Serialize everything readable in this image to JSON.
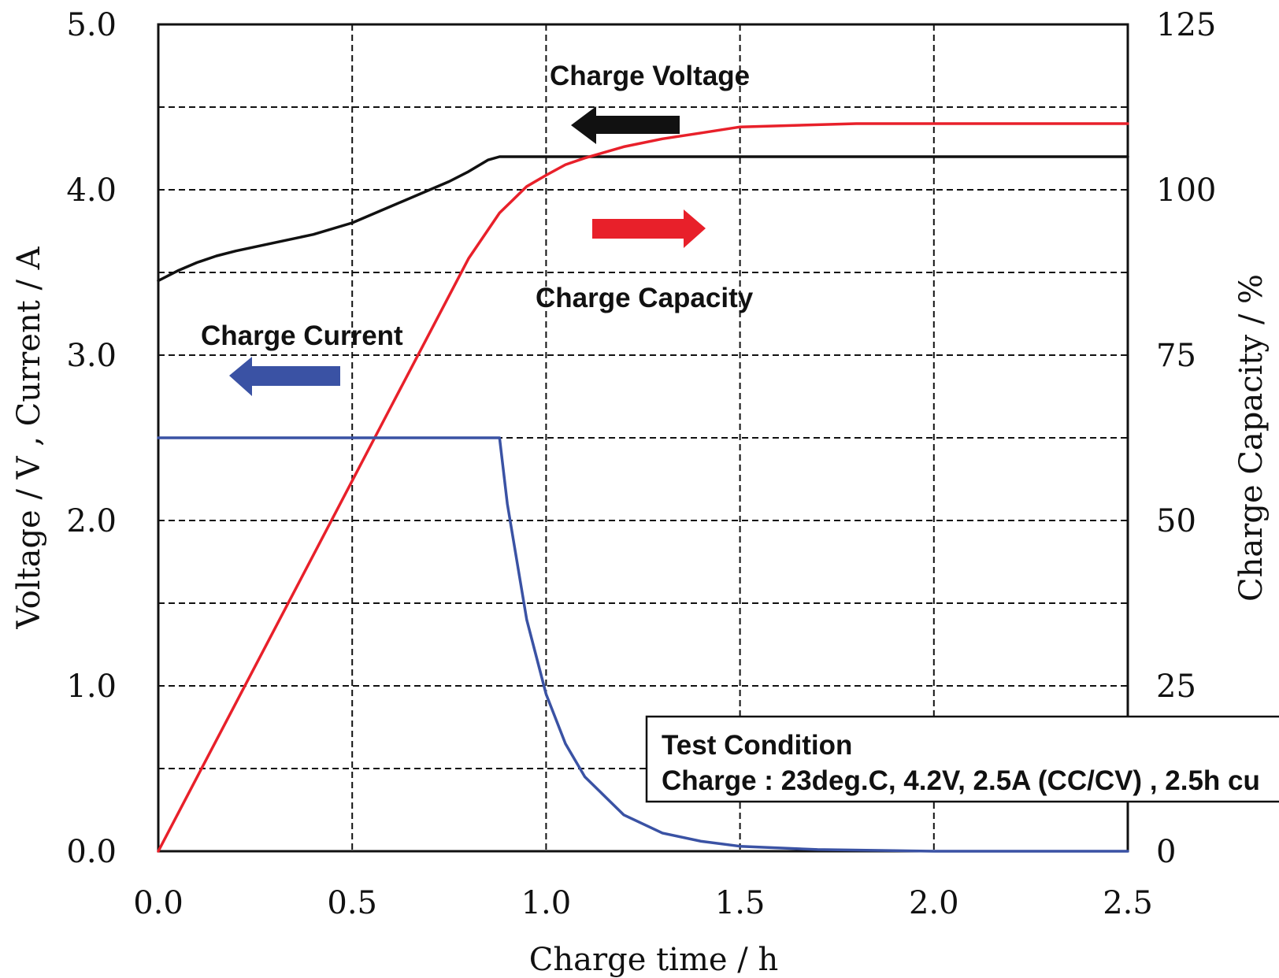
{
  "chart_data": {
    "type": "line",
    "xlabel": "Charge time / h",
    "ylabel_left": "Voltage / V , Current / A",
    "ylabel_right": "Charge Capacity / %",
    "xlim": [
      0.0,
      2.5
    ],
    "ylim_left": [
      0.0,
      5.0
    ],
    "ylim_right": [
      0,
      125
    ],
    "x_ticks": [
      "0.0",
      "0.5",
      "1.0",
      "1.5",
      "2.0",
      "2.5"
    ],
    "y_left_ticks": [
      "0.0",
      "1.0",
      "2.0",
      "3.0",
      "4.0",
      "5.0"
    ],
    "y_right_ticks": [
      "0",
      "25",
      "50",
      "75",
      "100",
      "125"
    ],
    "grid": true,
    "series": [
      {
        "name": "Charge Voltage",
        "axis": "left",
        "color": "#111111",
        "x": [
          0.0,
          0.05,
          0.1,
          0.15,
          0.2,
          0.3,
          0.4,
          0.5,
          0.55,
          0.6,
          0.65,
          0.7,
          0.75,
          0.8,
          0.85,
          0.88,
          1.0,
          1.5,
          2.0,
          2.5
        ],
        "y": [
          3.45,
          3.51,
          3.56,
          3.6,
          3.63,
          3.68,
          3.73,
          3.8,
          3.85,
          3.9,
          3.95,
          4.0,
          4.05,
          4.11,
          4.18,
          4.2,
          4.2,
          4.2,
          4.2,
          4.2
        ]
      },
      {
        "name": "Charge Capacity",
        "axis": "right",
        "color": "#e8202a",
        "x": [
          0.0,
          0.1,
          0.2,
          0.3,
          0.4,
          0.5,
          0.6,
          0.7,
          0.8,
          0.88,
          0.95,
          1.0,
          1.05,
          1.1,
          1.2,
          1.3,
          1.4,
          1.5,
          1.8,
          2.0,
          2.5
        ],
        "y": [
          0,
          11.2,
          22.4,
          33.6,
          44.8,
          56.0,
          67.2,
          78.4,
          89.6,
          96.5,
          100.5,
          102.2,
          103.8,
          104.8,
          106.5,
          107.7,
          108.6,
          109.5,
          110.0,
          110.0,
          110.0
        ]
      },
      {
        "name": "Charge Current",
        "axis": "left",
        "color": "#3a52a4",
        "x": [
          0.0,
          0.88,
          0.9,
          0.95,
          1.0,
          1.05,
          1.1,
          1.2,
          1.3,
          1.4,
          1.5,
          1.7,
          2.0,
          2.5
        ],
        "y": [
          2.5,
          2.5,
          2.1,
          1.4,
          0.95,
          0.65,
          0.45,
          0.22,
          0.11,
          0.06,
          0.03,
          0.01,
          0.0,
          0.0
        ]
      }
    ],
    "annotations": {
      "voltage": "Charge Voltage",
      "capacity": "Charge Capacity",
      "current": "Charge Current",
      "test_title": "Test Condition",
      "test_line": "Charge : 23deg.C, 4.2V, 2.5A (CC/CV) , 2.5h cu"
    },
    "arrows": [
      {
        "series": "Charge Voltage",
        "direction": "left",
        "color": "#111111"
      },
      {
        "series": "Charge Capacity",
        "direction": "right",
        "color": "#e8202a"
      },
      {
        "series": "Charge Current",
        "direction": "left",
        "color": "#3a52a4"
      }
    ]
  }
}
